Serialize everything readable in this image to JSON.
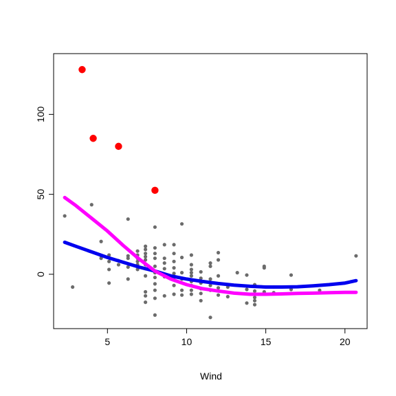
{
  "chart_data": {
    "type": "scatter",
    "title": "",
    "xlabel": "Wind",
    "ylabel": "",
    "xlim": [
      1.6,
      21.4
    ],
    "ylim": [
      -34,
      138
    ],
    "xticks": [
      5,
      10,
      15,
      20
    ],
    "yticks": [
      0,
      50,
      100
    ],
    "grid": false,
    "legend": "none",
    "colors": {
      "points": "#6b6b6b",
      "highlight": "#ff0000",
      "blue_curve": "#0000ee",
      "magenta_curve": "#ff00ff"
    },
    "points": [
      [
        2.3,
        36.5
      ],
      [
        2.8,
        -8
      ],
      [
        4.0,
        43.5
      ],
      [
        4.6,
        20.5
      ],
      [
        4.6,
        11.5
      ],
      [
        4.6,
        10
      ],
      [
        5.1,
        12
      ],
      [
        5.1,
        8
      ],
      [
        5.1,
        3
      ],
      [
        5.1,
        -5.5
      ],
      [
        5.7,
        8.5
      ],
      [
        5.7,
        6
      ],
      [
        6.3,
        34.5
      ],
      [
        6.3,
        11.5
      ],
      [
        6.3,
        10
      ],
      [
        6.3,
        4.5
      ],
      [
        6.3,
        -3
      ],
      [
        6.9,
        14.5
      ],
      [
        6.9,
        12
      ],
      [
        6.9,
        10
      ],
      [
        6.9,
        8
      ],
      [
        6.9,
        6
      ],
      [
        6.9,
        3
      ],
      [
        7.4,
        17.5
      ],
      [
        7.4,
        15.5
      ],
      [
        7.4,
        13
      ],
      [
        7.4,
        11
      ],
      [
        7.4,
        9
      ],
      [
        7.4,
        6
      ],
      [
        7.4,
        3.5
      ],
      [
        7.4,
        -1
      ],
      [
        7.4,
        -11
      ],
      [
        7.4,
        -13.5
      ],
      [
        7.4,
        -17.5
      ],
      [
        8.0,
        29.5
      ],
      [
        8.0,
        16.5
      ],
      [
        8.0,
        13
      ],
      [
        8.0,
        10
      ],
      [
        8.0,
        5
      ],
      [
        8.0,
        1
      ],
      [
        8.0,
        -2
      ],
      [
        8.0,
        -6
      ],
      [
        8.0,
        -10
      ],
      [
        8.0,
        -15
      ],
      [
        8.0,
        -25.5
      ],
      [
        8.6,
        18.5
      ],
      [
        8.6,
        10
      ],
      [
        8.6,
        7
      ],
      [
        8.6,
        3.5
      ],
      [
        8.6,
        -1.5
      ],
      [
        8.6,
        -13.5
      ],
      [
        9.2,
        18.5
      ],
      [
        9.2,
        13
      ],
      [
        9.2,
        8
      ],
      [
        9.2,
        4
      ],
      [
        9.2,
        0.5
      ],
      [
        9.2,
        -3.5
      ],
      [
        9.2,
        -7
      ],
      [
        9.2,
        -12.5
      ],
      [
        9.7,
        31.5
      ],
      [
        9.7,
        10.5
      ],
      [
        9.7,
        1
      ],
      [
        9.7,
        -3
      ],
      [
        9.7,
        -10
      ],
      [
        9.7,
        -13
      ],
      [
        10.3,
        12
      ],
      [
        10.3,
        6
      ],
      [
        10.3,
        3
      ],
      [
        10.3,
        1
      ],
      [
        10.3,
        -1
      ],
      [
        10.3,
        -4.5
      ],
      [
        10.3,
        -7
      ],
      [
        10.3,
        -10
      ],
      [
        10.3,
        -12.5
      ],
      [
        10.9,
        1.5
      ],
      [
        10.9,
        -2.5
      ],
      [
        10.9,
        -5.5
      ],
      [
        10.9,
        -9
      ],
      [
        10.9,
        -12
      ],
      [
        10.9,
        -16.5
      ],
      [
        11.5,
        7
      ],
      [
        11.5,
        5
      ],
      [
        11.5,
        -3
      ],
      [
        11.5,
        -7
      ],
      [
        11.5,
        -10
      ],
      [
        11.5,
        -27
      ],
      [
        12.0,
        13.5
      ],
      [
        12.0,
        9
      ],
      [
        12.0,
        -1
      ],
      [
        12.0,
        -8.5
      ],
      [
        12.0,
        -13
      ],
      [
        12.6,
        -8
      ],
      [
        12.6,
        -14
      ],
      [
        13.2,
        1
      ],
      [
        13.8,
        -0.5
      ],
      [
        13.8,
        -9.5
      ],
      [
        13.8,
        -18
      ],
      [
        14.3,
        -6.5
      ],
      [
        14.3,
        -10.5
      ],
      [
        14.3,
        -14.5
      ],
      [
        14.3,
        -16.5
      ],
      [
        14.3,
        -19
      ],
      [
        14.9,
        5
      ],
      [
        14.9,
        4
      ],
      [
        14.9,
        -11
      ],
      [
        15.5,
        -8
      ],
      [
        15.5,
        -11.5
      ],
      [
        16.6,
        -0.5
      ],
      [
        16.6,
        -9.5
      ],
      [
        18.4,
        -10
      ],
      [
        20.7,
        11.5
      ]
    ],
    "highlight_points": [
      [
        3.4,
        128
      ],
      [
        4.1,
        85
      ],
      [
        5.7,
        80
      ],
      [
        8.0,
        52.5
      ]
    ],
    "blue_curve": [
      [
        2.3,
        20
      ],
      [
        3.0,
        17.5
      ],
      [
        4.0,
        14
      ],
      [
        5.0,
        10.5
      ],
      [
        6.0,
        7.5
      ],
      [
        7.0,
        4.5
      ],
      [
        8.0,
        2
      ],
      [
        9.0,
        -1
      ],
      [
        10.0,
        -3
      ],
      [
        11.0,
        -4.5
      ],
      [
        12.0,
        -5.8
      ],
      [
        13.0,
        -6.8
      ],
      [
        14.0,
        -7.5
      ],
      [
        15.0,
        -8
      ],
      [
        16.0,
        -8
      ],
      [
        17.0,
        -7.8
      ],
      [
        18.0,
        -7.2
      ],
      [
        19.0,
        -6.5
      ],
      [
        20.0,
        -5.5
      ],
      [
        20.7,
        -4
      ]
    ],
    "magenta_curve": [
      [
        2.3,
        48
      ],
      [
        3.0,
        43
      ],
      [
        4.0,
        35
      ],
      [
        5.0,
        27
      ],
      [
        6.0,
        18
      ],
      [
        7.0,
        9.5
      ],
      [
        8.0,
        2
      ],
      [
        9.0,
        -3
      ],
      [
        10.0,
        -6.5
      ],
      [
        11.0,
        -9
      ],
      [
        12.0,
        -10.5
      ],
      [
        13.0,
        -11.8
      ],
      [
        14.0,
        -12.5
      ],
      [
        15.0,
        -12.5
      ],
      [
        16.0,
        -12.3
      ],
      [
        17.0,
        -12
      ],
      [
        18.0,
        -11.8
      ],
      [
        19.0,
        -11.5
      ],
      [
        20.0,
        -11.3
      ],
      [
        20.7,
        -11.3
      ]
    ]
  }
}
